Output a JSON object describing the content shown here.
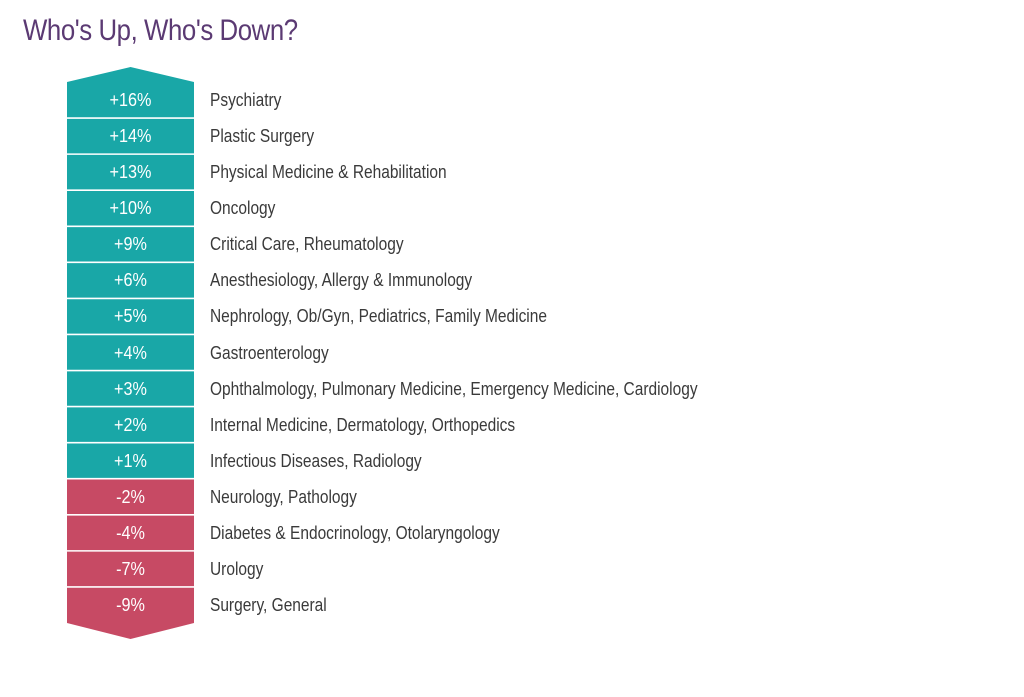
{
  "title": "Who's Up, Who's Down?",
  "colors": {
    "positive": "#19a7a7",
    "negative": "#c74a64",
    "title": "#5b3a73",
    "label": "#3a3a3a"
  },
  "rows": [
    {
      "value": "+16%",
      "label": "Psychiatry"
    },
    {
      "value": "+14%",
      "label": "Plastic Surgery"
    },
    {
      "value": "+13%",
      "label": "Physical Medicine & Rehabilitation"
    },
    {
      "value": "+10%",
      "label": "Oncology"
    },
    {
      "value": "+9%",
      "label": "Critical Care, Rheumatology"
    },
    {
      "value": "+6%",
      "label": "Anesthesiology, Allergy & Immunology"
    },
    {
      "value": "+5%",
      "label": "Nephrology, Ob/Gyn, Pediatrics, Family Medicine"
    },
    {
      "value": "+4%",
      "label": "Gastroenterology"
    },
    {
      "value": "+3%",
      "label": "Ophthalmology, Pulmonary Medicine, Emergency Medicine, Cardiology"
    },
    {
      "value": "+2%",
      "label": "Internal Medicine, Dermatology, Orthopedics"
    },
    {
      "value": "+1%",
      "label": "Infectious Diseases, Radiology"
    },
    {
      "value": "-2%",
      "label": "Neurology, Pathology"
    },
    {
      "value": "-4%",
      "label": "Diabetes & Endocrinology, Otolaryngology"
    },
    {
      "value": "-7%",
      "label": "Urology"
    },
    {
      "value": "-9%",
      "label": "Surgery, General"
    }
  ],
  "chart_data": {
    "type": "table",
    "title": "Who's Up, Who's Down?",
    "categories": [
      "Psychiatry",
      "Plastic Surgery",
      "Physical Medicine & Rehabilitation",
      "Oncology",
      "Critical Care, Rheumatology",
      "Anesthesiology, Allergy & Immunology",
      "Nephrology, Ob/Gyn, Pediatrics, Family Medicine",
      "Gastroenterology",
      "Ophthalmology, Pulmonary Medicine, Emergency Medicine, Cardiology",
      "Internal Medicine, Dermatology, Orthopedics",
      "Infectious Diseases, Radiology",
      "Neurology, Pathology",
      "Diabetes & Endocrinology, Otolaryngology",
      "Urology",
      "Surgery, General"
    ],
    "values": [
      16,
      14,
      13,
      10,
      9,
      6,
      5,
      4,
      3,
      2,
      1,
      -2,
      -4,
      -7,
      -9
    ],
    "value_format": "signed percent",
    "xlabel": "",
    "ylabel": "",
    "grid": false,
    "legend": "none (teal = up, red = down)"
  }
}
